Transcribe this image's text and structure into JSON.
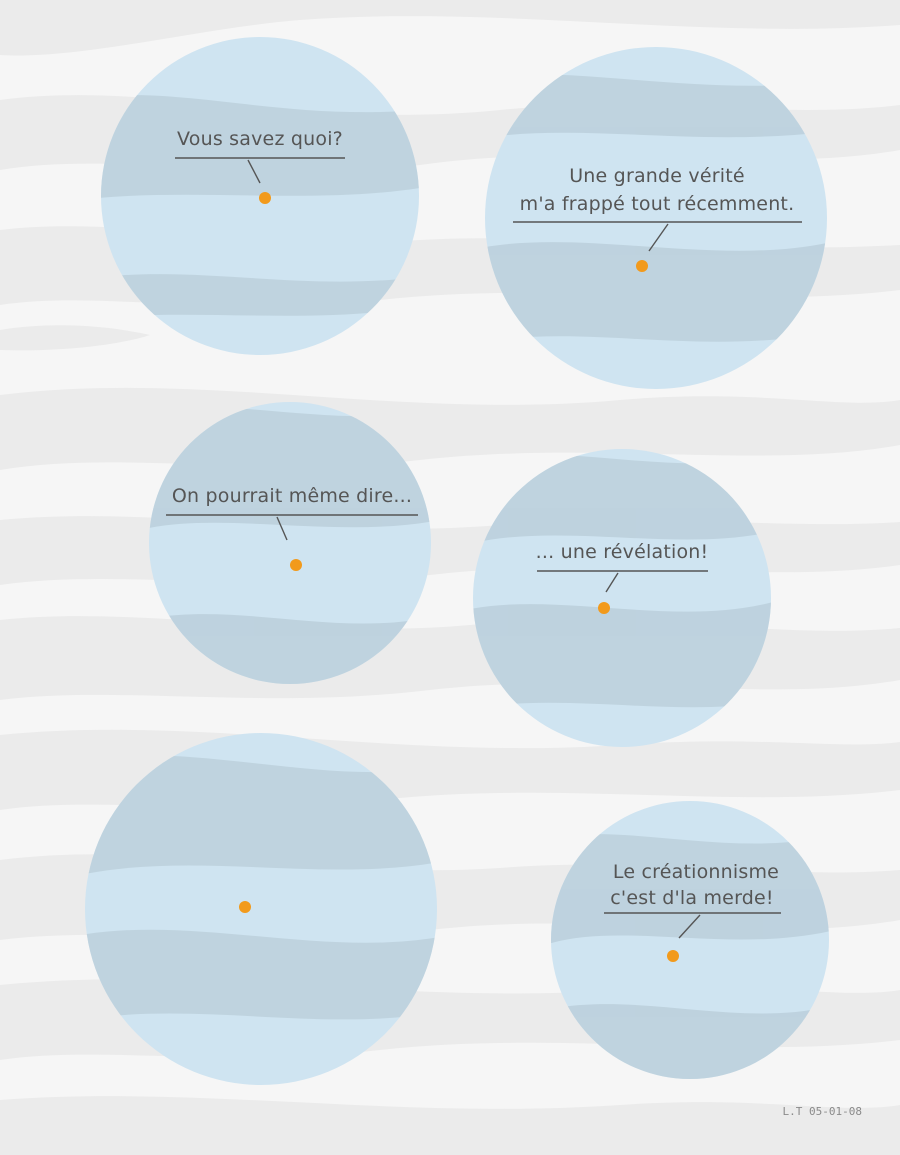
{
  "comic": {
    "panels": [
      {
        "lines": [
          "Vous savez quoi?"
        ]
      },
      {
        "lines": [
          "Une grande vérité",
          "m'a frappé tout récemment."
        ]
      },
      {
        "lines": [
          "On pourrait même dire..."
        ]
      },
      {
        "lines": [
          "... une révélation!"
        ]
      },
      {
        "lines": []
      },
      {
        "lines": [
          "Le créationnisme",
          "c'est d'la merde!"
        ]
      }
    ],
    "signature": "L.T 05-01-08"
  },
  "colors": {
    "background": "#f6f6f6",
    "cloud_band": "#ebebeb",
    "planet": "#cfe4f1",
    "planet_band": "#b9cdd8",
    "speaker_dot": "#f29a1c",
    "line": "#555555"
  }
}
